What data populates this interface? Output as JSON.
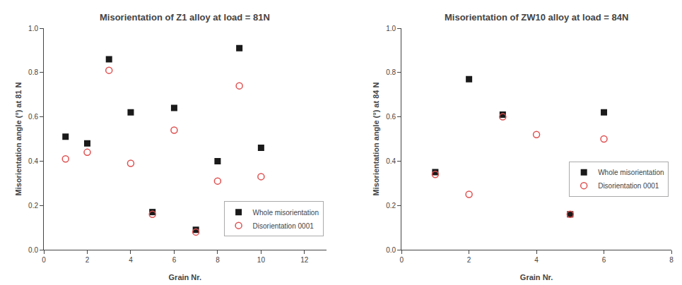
{
  "chart_data": [
    {
      "type": "scatter",
      "title": "Misorientation of Z1 alloy at load = 81N",
      "xlabel": "Grain Nr.",
      "ylabel": "Misorientation angle (°) at 81 N",
      "xlim": [
        0,
        13
      ],
      "ylim": [
        0,
        1
      ],
      "xticks": [
        0,
        2,
        4,
        6,
        8,
        10,
        12
      ],
      "yticks": [
        {
          "value": 0,
          "label": "0.0"
        },
        0.2,
        0.4,
        0.6,
        0.8,
        {
          "value": 1,
          "label": "1.0"
        }
      ],
      "grid": false,
      "legend": "lower right",
      "series": [
        {
          "name": "Whole misorientation",
          "color": "#1a1a1a",
          "marker": "square",
          "x": [
            1,
            2,
            3,
            4,
            5,
            6,
            7,
            8,
            9,
            10
          ],
          "values": [
            0.51,
            0.48,
            0.86,
            0.62,
            0.17,
            0.64,
            0.09,
            0.4,
            0.91,
            0.46
          ]
        },
        {
          "name": "Disorientation 0001",
          "color": "#e05050",
          "marker": "circle-open",
          "x": [
            1,
            2,
            3,
            4,
            5,
            6,
            7,
            8,
            9,
            10
          ],
          "values": [
            0.41,
            0.44,
            0.81,
            0.39,
            0.16,
            0.54,
            0.08,
            0.31,
            0.74,
            0.33
          ]
        }
      ]
    },
    {
      "type": "scatter",
      "title": "Misorientation of ZW10 alloy at load = 84N",
      "xlabel": "Grain Nr.",
      "ylabel": "Misorientation angle (°) at 84 N",
      "xlim": [
        0,
        8
      ],
      "ylim": [
        0,
        1
      ],
      "xticks": [
        0,
        2,
        4,
        6,
        8
      ],
      "yticks": [
        {
          "value": 0,
          "label": "0.0"
        },
        0.2,
        0.4,
        0.6,
        0.8,
        {
          "value": 1,
          "label": "1.0"
        }
      ],
      "grid": false,
      "legend": "lower right",
      "series": [
        {
          "name": "Whole misorientation",
          "color": "#1a1a1a",
          "marker": "square",
          "x": [
            1,
            2,
            3,
            5,
            6
          ],
          "values": [
            0.35,
            0.77,
            0.61,
            0.16,
            0.62
          ]
        },
        {
          "name": "Disorientation 0001",
          "color": "#e05050",
          "marker": "circle-open",
          "x": [
            1,
            2,
            3,
            4,
            5,
            6
          ],
          "values": [
            0.34,
            0.25,
            0.6,
            0.52,
            0.16,
            0.5
          ]
        }
      ]
    }
  ]
}
